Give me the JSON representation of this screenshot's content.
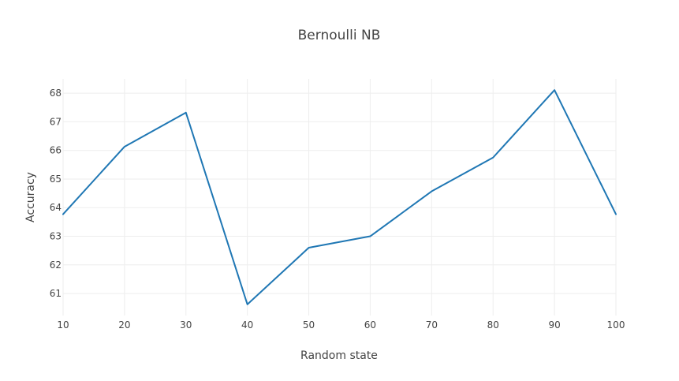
{
  "chart_data": {
    "type": "line",
    "title": "Bernoulli NB",
    "xlabel": "Random state",
    "ylabel": "Accuracy",
    "x": [
      10,
      20,
      30,
      40,
      50,
      60,
      70,
      80,
      90,
      100
    ],
    "xticks": [
      10,
      20,
      30,
      40,
      50,
      60,
      70,
      80,
      90,
      100
    ],
    "yticks": [
      61,
      62,
      63,
      64,
      65,
      66,
      67,
      68
    ],
    "xlim": [
      10,
      100
    ],
    "ylim": [
      60.23,
      68.5
    ],
    "grid": true,
    "legend": "none",
    "series": [
      {
        "color": "#1f77b4",
        "values": [
          63.77,
          66.13,
          67.32,
          60.62,
          62.6,
          63.0,
          64.57,
          65.75,
          68.11,
          63.77
        ]
      }
    ]
  }
}
